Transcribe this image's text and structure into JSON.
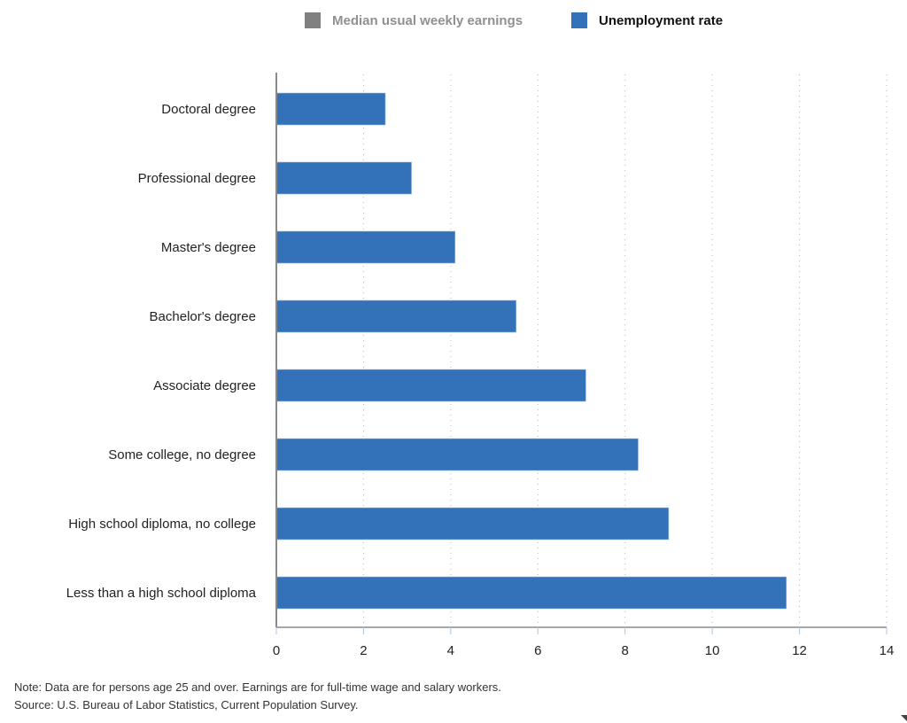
{
  "chart_data": {
    "type": "bar",
    "orientation": "horizontal",
    "title": "",
    "xlabel": "",
    "ylabel": "",
    "xlim": [
      0,
      14
    ],
    "x_ticks": [
      "0",
      "2",
      "4",
      "6",
      "8",
      "10",
      "12",
      "14"
    ],
    "grid": true,
    "legend_position": "top-center",
    "legend": [
      {
        "name": "Median usual weekly earnings",
        "color": "#808080",
        "active": false
      },
      {
        "name": "Unemployment rate",
        "color": "#3371b8",
        "active": true
      }
    ],
    "categories": [
      "Doctoral degree",
      "Professional degree",
      "Master's degree",
      "Bachelor's degree",
      "Associate degree",
      "Some college, no degree",
      "High school diploma, no college",
      "Less than a high school diploma"
    ],
    "series": [
      {
        "name": "Unemployment rate",
        "color": "#3371b8",
        "values": [
          2.5,
          3.1,
          4.1,
          5.5,
          7.1,
          8.3,
          9.0,
          11.7
        ]
      }
    ]
  },
  "notes": {
    "note": "Note: Data are for persons age 25 and over. Earnings are for full-time wage and salary workers.",
    "source": "Source: U.S. Bureau of Labor Statistics, Current Population Survey."
  }
}
